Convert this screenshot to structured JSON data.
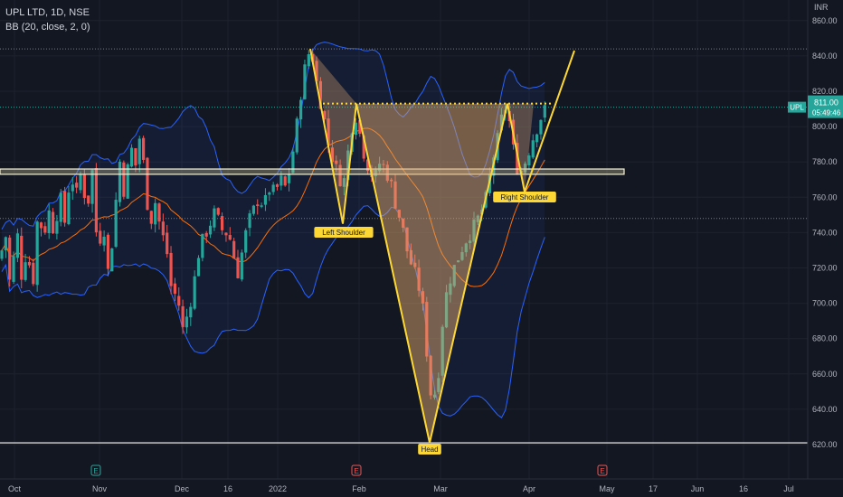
{
  "legend": {
    "symbol_line": "UPL LTD, 1D, NSE",
    "indicator_line": "BB (20, close, 2, 0)"
  },
  "currency": "INR",
  "last_price": {
    "ticker_tag": "UPL",
    "value": "811.00",
    "countdown": "05:49:46"
  },
  "colors": {
    "background": "#131722",
    "up": "#26a69a",
    "down": "#ef5350",
    "bb_band": "#2962ff",
    "bb_basis": "#ff6d00",
    "pattern": "#fdd835",
    "support_rect": "#c8c196"
  },
  "pattern_labels": {
    "left_shoulder": "Left Shoulder",
    "head": "Head",
    "right_shoulder": "Right Shoulder"
  },
  "event_markers": [
    "E",
    "E",
    "E"
  ],
  "chart_data": {
    "type": "candlestick",
    "title": "UPL LTD, 1D, NSE",
    "ylim": [
      615,
      865
    ],
    "y_ticks": [
      "860.00",
      "840.00",
      "820.00",
      "800.00",
      "780.00",
      "760.00",
      "740.00",
      "720.00",
      "700.00",
      "680.00",
      "660.00",
      "640.00",
      "620.00"
    ],
    "x_ticks": [
      "Oct",
      "Nov",
      "Dec",
      "16",
      "2022",
      "Feb",
      "Mar",
      "Apr",
      "May",
      "17",
      "Jun",
      "16",
      "Jul"
    ],
    "grid": true,
    "indicator": "Bollinger Bands (20, close, 2, 0)",
    "key_levels": {
      "neckline": 813,
      "head_low": 621,
      "support_zone": [
        773,
        776
      ],
      "dotted_upper": 844,
      "dotted_lower": 748,
      "current_price": 811
    },
    "pattern": {
      "name": "inverse head and shoulders",
      "left_shoulder_low": 745,
      "head_low": 621,
      "right_shoulder_low": 763,
      "peak_high": 844,
      "projection_high": 843
    }
  }
}
